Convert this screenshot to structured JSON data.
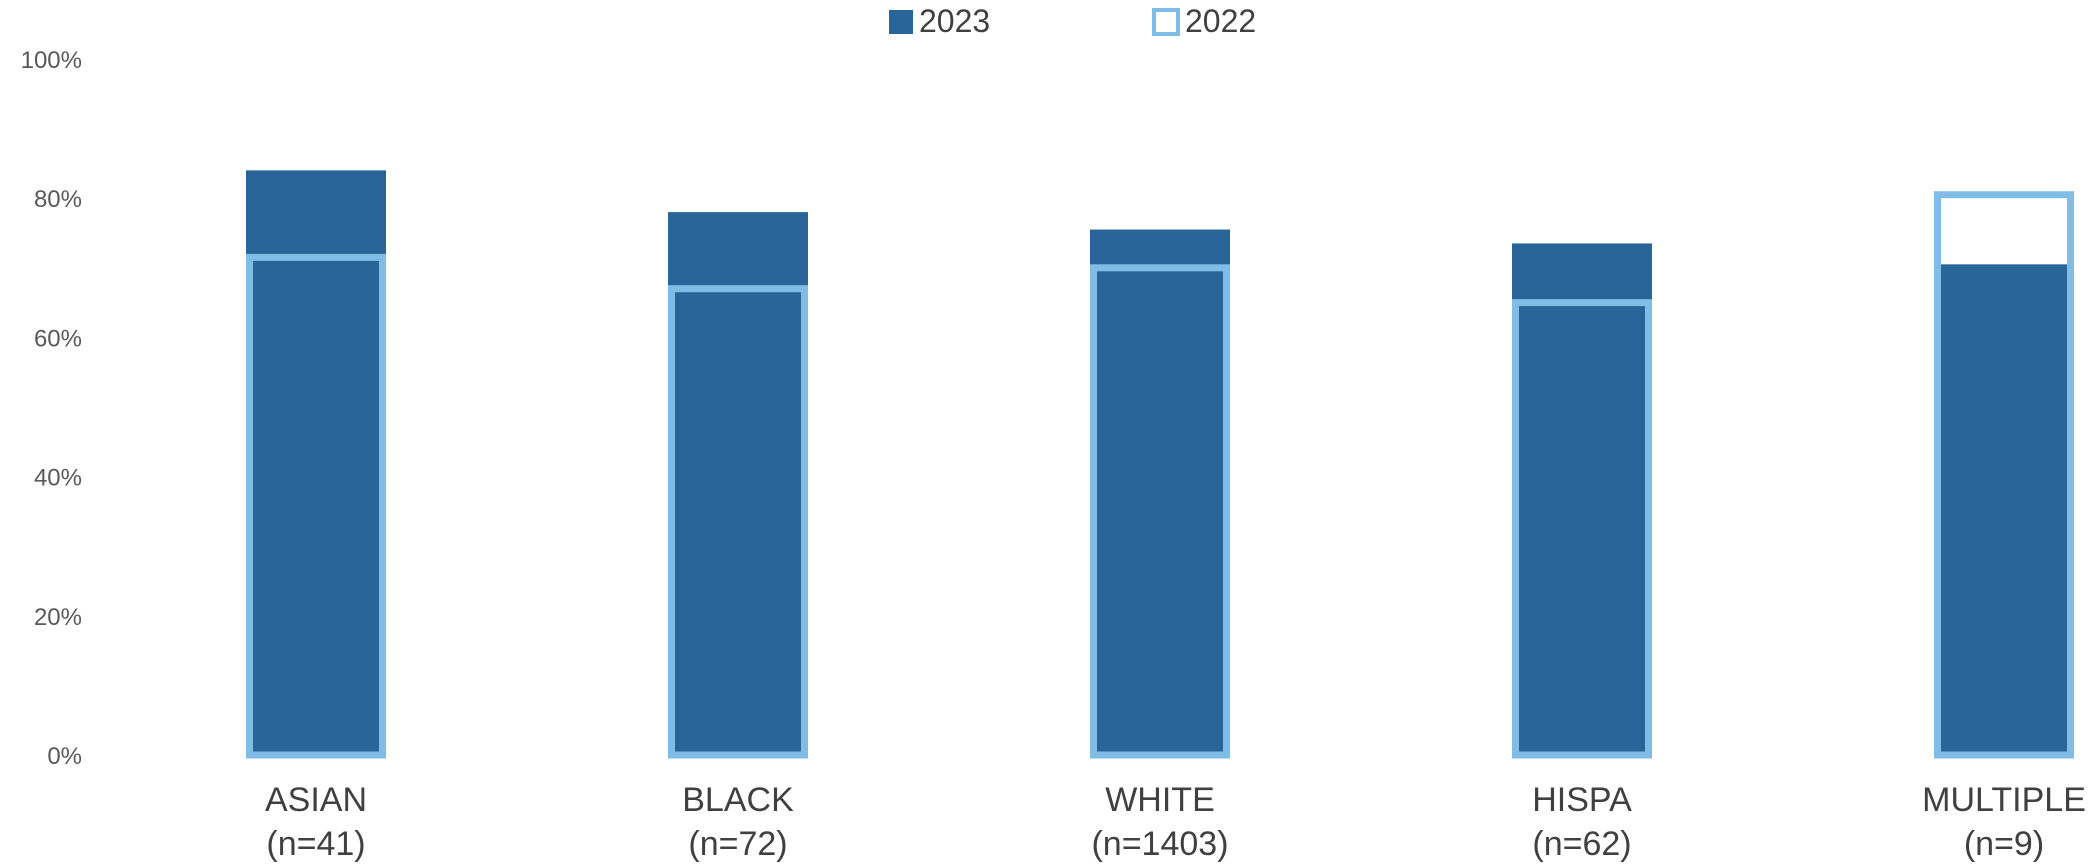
{
  "chart_data": {
    "type": "bar",
    "categories": [
      "ASIAN",
      "BLACK",
      "WHITE",
      "HISPA",
      "MULTIPLE"
    ],
    "category_counts": [
      "(n=41)",
      "(n=72)",
      "(n=1403)",
      "(n=62)",
      "(n=9)"
    ],
    "series": [
      {
        "name": "2023",
        "values": [
          84,
          78,
          75.5,
          73.5,
          70.5
        ],
        "style": "filled",
        "color": "#2A6599"
      },
      {
        "name": "2022",
        "values": [
          72,
          67.5,
          70.5,
          65.5,
          81
        ],
        "style": "outline",
        "color": "#7FBDE6"
      }
    ],
    "ylim": [
      0,
      100
    ],
    "yticks": [
      "0%",
      "20%",
      "40%",
      "60%",
      "80%",
      "100%"
    ],
    "grid": false,
    "legend": "top-center"
  }
}
